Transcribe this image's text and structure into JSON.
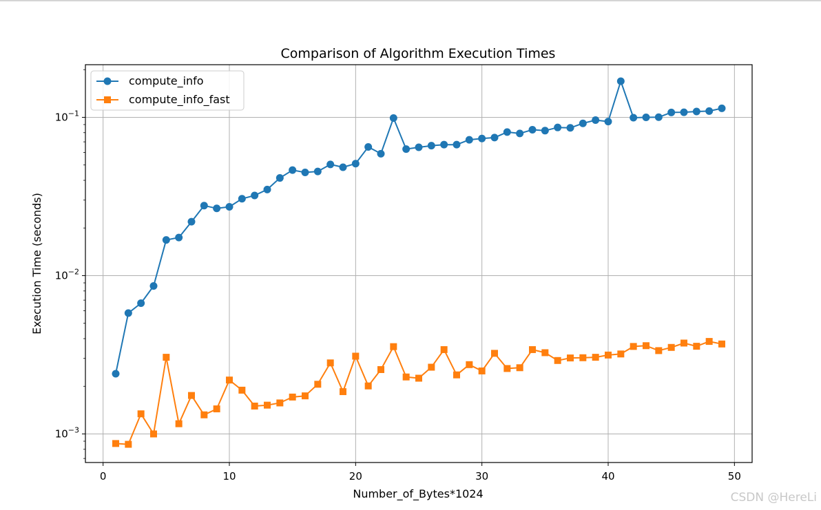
{
  "watermark": "CSDN @HereLi",
  "chart_data": {
    "type": "line",
    "title": "Comparison of Algorithm Execution Times",
    "xlabel": "Number_of_Bytes*1024",
    "ylabel": "Execution Time (seconds)",
    "yscale": "log",
    "xlim": [
      -1.4,
      51.4
    ],
    "ylim": [
      0.00066,
      0.215
    ],
    "xticks": [
      0,
      10,
      20,
      30,
      40,
      50
    ],
    "yticks": [
      {
        "value": 0.001,
        "base": "10",
        "exp": "−3"
      },
      {
        "value": 0.01,
        "base": "10",
        "exp": "−2"
      },
      {
        "value": 0.1,
        "base": "10",
        "exp": "−1"
      }
    ],
    "grid": true,
    "legend_position": "upper left",
    "x": [
      1,
      2,
      3,
      4,
      5,
      6,
      7,
      8,
      9,
      10,
      11,
      12,
      13,
      14,
      15,
      16,
      17,
      18,
      19,
      20,
      21,
      22,
      23,
      24,
      25,
      26,
      27,
      28,
      29,
      30,
      31,
      32,
      33,
      34,
      35,
      36,
      37,
      38,
      39,
      40,
      41,
      42,
      43,
      44,
      45,
      46,
      47,
      48,
      49
    ],
    "series": [
      {
        "name": "compute_info",
        "color": "#1f77b4",
        "marker": "circle",
        "values": [
          0.0024,
          0.0058,
          0.0067,
          0.0086,
          0.0168,
          0.0174,
          0.0219,
          0.0277,
          0.0266,
          0.0272,
          0.0306,
          0.0321,
          0.035,
          0.0414,
          0.0464,
          0.0449,
          0.0455,
          0.0504,
          0.0484,
          0.051,
          0.065,
          0.0589,
          0.099,
          0.063,
          0.0647,
          0.0662,
          0.0672,
          0.0672,
          0.0721,
          0.0735,
          0.0745,
          0.0807,
          0.0791,
          0.0835,
          0.0824,
          0.0863,
          0.0858,
          0.0916,
          0.096,
          0.094,
          0.169,
          0.0995,
          0.1,
          0.1002,
          0.1074,
          0.1076,
          0.1088,
          0.1095,
          0.114
        ]
      },
      {
        "name": "compute_info_fast",
        "color": "#ff7f0e",
        "marker": "square",
        "values": [
          0.00087,
          0.00086,
          0.00134,
          0.001,
          0.00305,
          0.00116,
          0.00175,
          0.00132,
          0.00144,
          0.00219,
          0.00189,
          0.0015,
          0.00152,
          0.00157,
          0.00171,
          0.00174,
          0.00206,
          0.00281,
          0.00185,
          0.0031,
          0.00201,
          0.00255,
          0.00356,
          0.00229,
          0.00225,
          0.00264,
          0.00341,
          0.00236,
          0.00274,
          0.0025,
          0.00323,
          0.00259,
          0.00262,
          0.00341,
          0.00326,
          0.00291,
          0.00302,
          0.00303,
          0.00305,
          0.00315,
          0.0032,
          0.00357,
          0.00361,
          0.00336,
          0.00352,
          0.00375,
          0.00358,
          0.00384,
          0.0037
        ]
      }
    ]
  }
}
